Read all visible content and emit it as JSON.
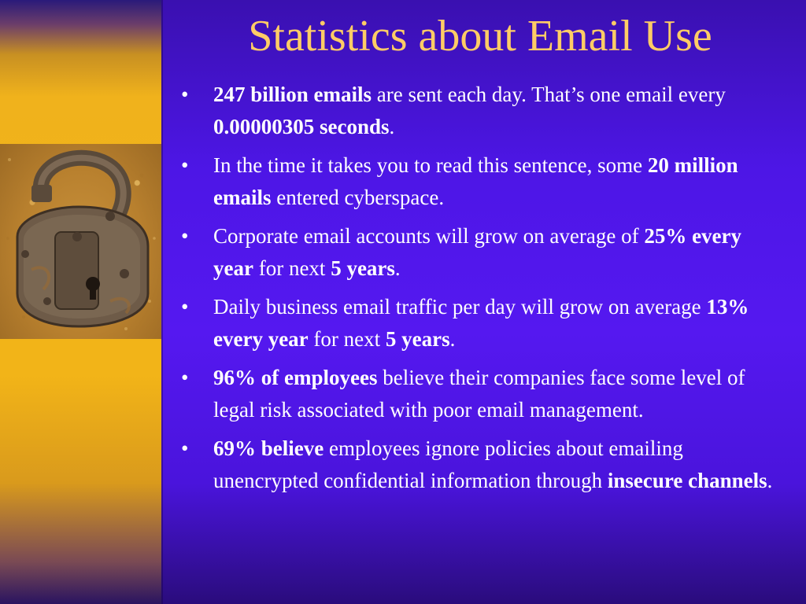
{
  "slide": {
    "title": "Statistics about Email Use",
    "image_icon": "open-padlock-icon",
    "colors": {
      "background": "#4d16e6",
      "left_band": "#f2b418",
      "title": "#ffcc66",
      "text": "#ffffff"
    },
    "bullets": [
      {
        "bold1": "247 billion emails",
        "text1": " are sent each day. That’s one email every ",
        "bold2": "0.00000305 seconds",
        "text2": "."
      },
      {
        "text1": "In the time it takes you to read this sentence, some ",
        "bold1": "20 million emails",
        "text2": " entered cyberspace."
      },
      {
        "text1": "Corporate email accounts will grow on average of ",
        "bold1": "25% every year",
        "text2": " for next ",
        "bold2": "5 years",
        "text3": "."
      },
      {
        "text1": "Daily business email traffic per day will grow on average ",
        "bold1": "13% every year",
        "text2": " for next ",
        "bold2": "5 years",
        "text3": "."
      },
      {
        "bold1": "96% of employees",
        "text1": " believe their companies face some level of legal risk associated with poor email management."
      },
      {
        "bold1": "69% believe",
        "text1": " employees ignore policies about emailing unencrypted confidential information through ",
        "bold2": "insecure channels",
        "text2": "."
      }
    ]
  }
}
